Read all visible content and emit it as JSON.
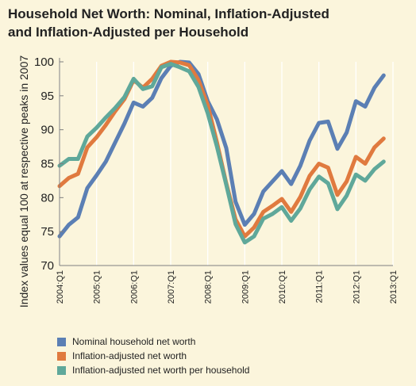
{
  "chart_data": {
    "type": "line",
    "title": [
      "Household Net Worth: Nominal, Inflation-Adjusted",
      "and Inflation-Adjusted per Household"
    ],
    "ylabel": "Index values equal 100 at respective peaks in 2007",
    "xlabel": "",
    "ylim": [
      70,
      100
    ],
    "yticks": [
      70,
      75,
      80,
      85,
      90,
      95,
      100
    ],
    "xtick_labels": [
      "2004:Q1",
      "2005:Q1",
      "2006:Q1",
      "2007:Q1",
      "2008:Q1",
      "2009:Q1",
      "2010:Q1",
      "2011:Q1",
      "2012:Q1",
      "2013:Q1"
    ],
    "grid": "vertical",
    "legend_position": "bottom-left",
    "x": [
      "2004:Q1",
      "2004:Q2",
      "2004:Q3",
      "2004:Q4",
      "2005:Q1",
      "2005:Q2",
      "2005:Q3",
      "2005:Q4",
      "2006:Q1",
      "2006:Q2",
      "2006:Q3",
      "2006:Q4",
      "2007:Q1",
      "2007:Q2",
      "2007:Q3",
      "2007:Q4",
      "2008:Q1",
      "2008:Q2",
      "2008:Q3",
      "2008:Q4",
      "2009:Q1",
      "2009:Q2",
      "2009:Q3",
      "2009:Q4",
      "2010:Q1",
      "2010:Q2",
      "2010:Q3",
      "2010:Q4",
      "2011:Q1",
      "2011:Q2",
      "2011:Q3",
      "2011:Q4",
      "2012:Q1",
      "2012:Q2",
      "2012:Q3",
      "2012:Q4",
      "2013:Q1"
    ],
    "series": [
      {
        "name": "Nominal household net worth",
        "color": "#5b7fb4",
        "values": [
          74.3,
          76.0,
          77.1,
          81.4,
          83.3,
          85.3,
          88.1,
          90.9,
          94.0,
          93.4,
          94.7,
          97.6,
          99.4,
          100.0,
          99.9,
          98.2,
          94.2,
          91.5,
          87.3,
          79.4,
          76.0,
          77.6,
          80.9,
          82.4,
          83.9,
          82.0,
          84.7,
          88.4,
          91.0,
          91.2,
          87.2,
          89.6,
          94.2,
          93.4,
          96.2,
          98.0,
          null
        ]
      },
      {
        "name": "Inflation-adjusted net worth",
        "color": "#e07a3f",
        "values": [
          81.7,
          82.9,
          83.5,
          87.4,
          88.9,
          90.7,
          92.7,
          94.5,
          97.3,
          96.2,
          97.5,
          99.4,
          100.0,
          99.9,
          99.5,
          97.3,
          93.6,
          88.1,
          82.1,
          76.8,
          74.3,
          75.6,
          77.9,
          78.8,
          79.8,
          77.9,
          80.1,
          83.2,
          85.0,
          84.4,
          80.4,
          82.4,
          86.0,
          85.0,
          87.4,
          88.7,
          null
        ]
      },
      {
        "name": "Inflation-adjusted net worth per household",
        "color": "#5fa89a",
        "values": [
          84.7,
          85.7,
          85.7,
          89.0,
          90.3,
          91.8,
          93.2,
          94.8,
          97.5,
          96.0,
          96.4,
          99.2,
          99.7,
          99.2,
          98.6,
          96.3,
          92.4,
          87.5,
          81.9,
          76.1,
          73.4,
          74.3,
          76.9,
          77.6,
          78.6,
          76.6,
          78.4,
          81.2,
          83.1,
          82.1,
          78.3,
          80.3,
          83.4,
          82.5,
          84.2,
          85.3,
          null
        ]
      }
    ]
  }
}
